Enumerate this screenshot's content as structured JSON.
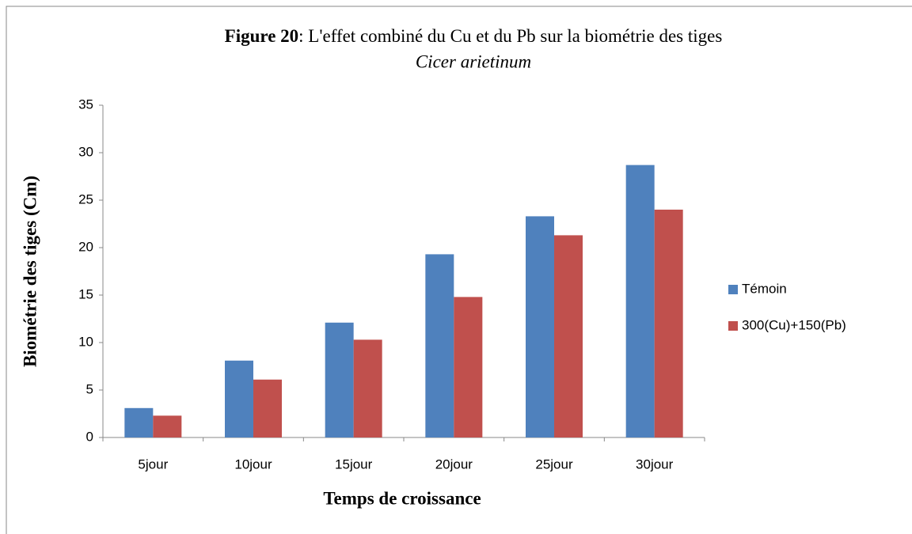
{
  "chart_data": {
    "type": "bar",
    "title": [
      "Figure 20",
      ": L'effet combiné du Cu et du Pb  sur la biométrie des tiges"
    ],
    "subtitle": "Cicer arietinum",
    "x_label": "Temps de croissance",
    "y_label": "Biométrie des tiges (Cm)",
    "categories": [
      "5jour",
      "10jour",
      "15jour",
      "20jour",
      "25jour",
      "30jour"
    ],
    "series": [
      {
        "name": "Témoin",
        "color": "#4f81bd",
        "values": [
          3.1,
          8.1,
          12.1,
          19.3,
          23.3,
          28.7
        ]
      },
      {
        "name": "300(Cu)+150(Pb)",
        "color": "#c0504d",
        "values": [
          2.3,
          6.1,
          10.3,
          14.8,
          21.3,
          24
        ]
      }
    ],
    "ylim": [
      0,
      35
    ],
    "yticks": [
      0,
      5,
      10,
      15,
      20,
      25,
      30,
      35
    ],
    "grid": false,
    "legend": "right"
  }
}
